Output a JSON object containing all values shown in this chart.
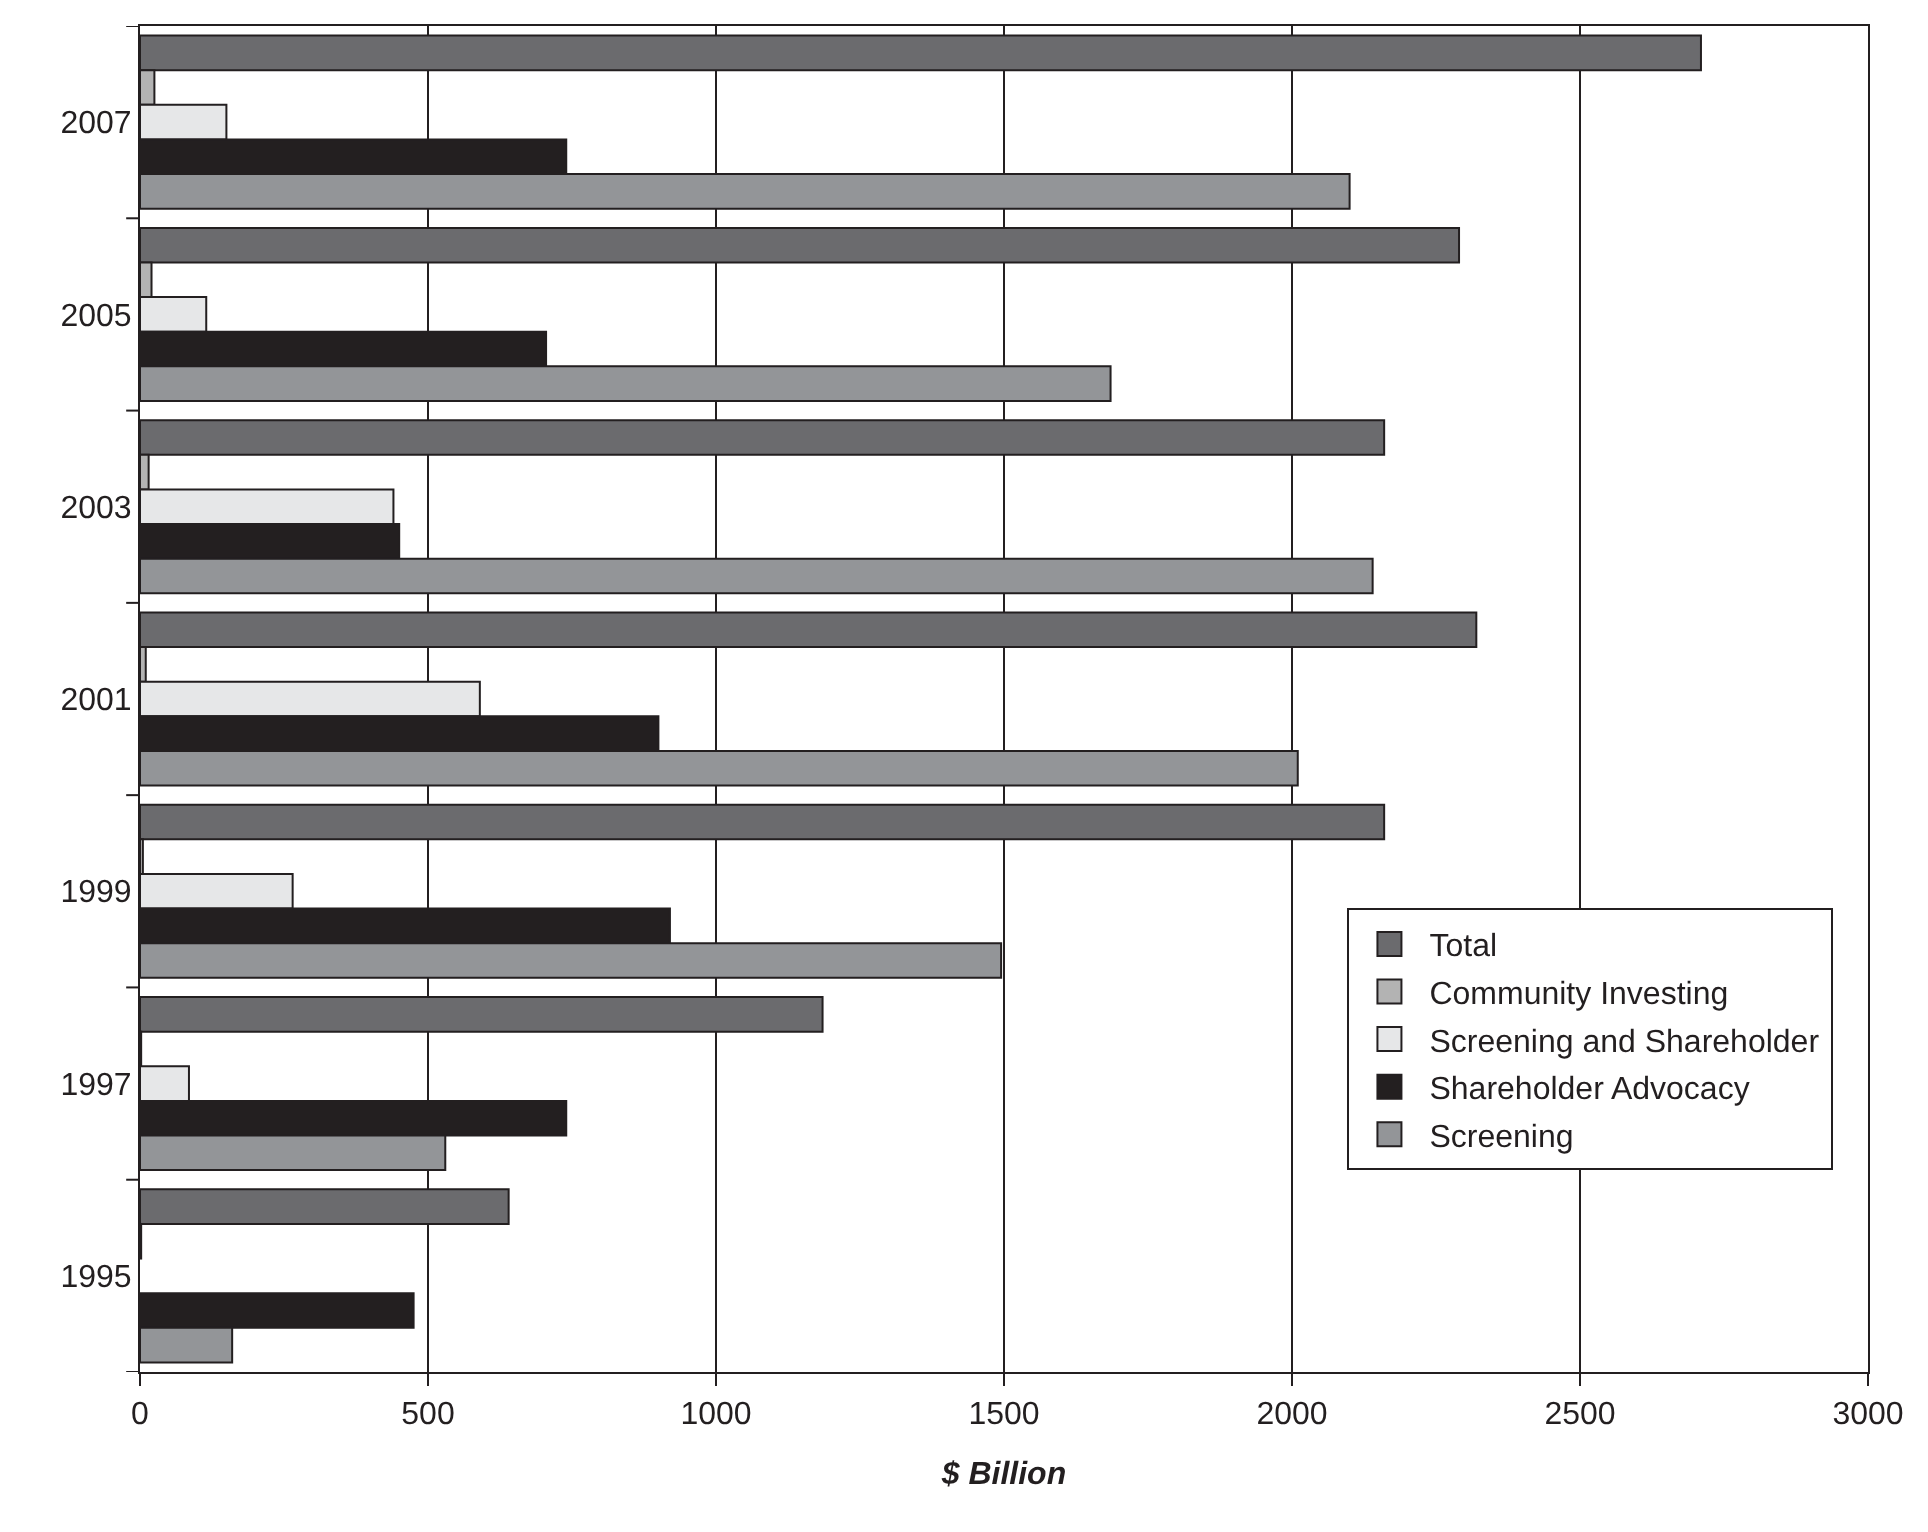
{
  "chart_data": {
    "type": "bar",
    "orientation": "horizontal",
    "xlabel": "$ Billion",
    "categories": [
      "2007",
      "2005",
      "2003",
      "2001",
      "1999",
      "1997",
      "1995"
    ],
    "series": [
      {
        "name": "Total",
        "color": "#6b6b6e",
        "values": [
          2710,
          2290,
          2160,
          2320,
          2160,
          1185,
          640
        ]
      },
      {
        "name": "Community Investing",
        "color": "#b3b3b3",
        "values": [
          25,
          20,
          15,
          10,
          5,
          2,
          2
        ]
      },
      {
        "name": "Screening and Shareholder",
        "color": "#e6e7e8",
        "values": [
          150,
          115,
          440,
          590,
          265,
          85,
          null
        ]
      },
      {
        "name": "Shareholder Advocacy",
        "color": "#231f20",
        "values": [
          740,
          705,
          450,
          900,
          920,
          740,
          475
        ]
      },
      {
        "name": "Screening",
        "color": "#939598",
        "values": [
          2100,
          1685,
          2140,
          2010,
          1495,
          530,
          160
        ]
      }
    ],
    "xlim": [
      0,
      3000
    ],
    "xticks": [
      0,
      500,
      1000,
      1500,
      2000,
      2500,
      3000
    ],
    "grid": "x",
    "legend": "bottom right"
  }
}
